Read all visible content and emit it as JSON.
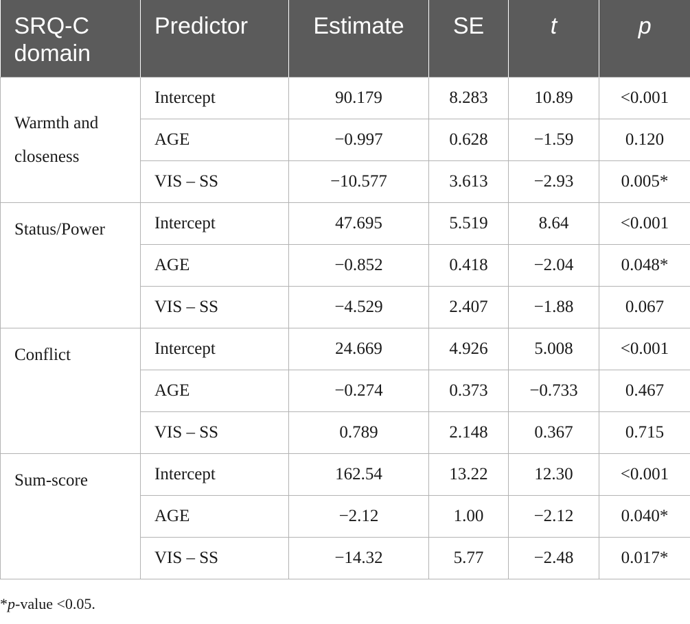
{
  "table": {
    "headers": {
      "domain": "SRQ-C domain",
      "predictor": "Predictor",
      "estimate": "Estimate",
      "se": "SE",
      "t": "t",
      "p": "p"
    },
    "groups": [
      {
        "domain": "Warmth and closeness",
        "rows": [
          {
            "predictor": "Intercept",
            "estimate": "90.179",
            "se": "8.283",
            "t": "10.89",
            "p": "<0.001"
          },
          {
            "predictor": "AGE",
            "estimate": "−0.997",
            "se": "0.628",
            "t": "−1.59",
            "p": "0.120"
          },
          {
            "predictor": "VIS – SS",
            "estimate": "−10.577",
            "se": "3.613",
            "t": "−2.93",
            "p": "0.005*"
          }
        ]
      },
      {
        "domain": "Status/Power",
        "rows": [
          {
            "predictor": "Intercept",
            "estimate": "47.695",
            "se": "5.519",
            "t": "8.64",
            "p": "<0.001"
          },
          {
            "predictor": "AGE",
            "estimate": "−0.852",
            "se": "0.418",
            "t": "−2.04",
            "p": "0.048*"
          },
          {
            "predictor": "VIS – SS",
            "estimate": "−4.529",
            "se": "2.407",
            "t": "−1.88",
            "p": "0.067"
          }
        ]
      },
      {
        "domain": "Conflict",
        "rows": [
          {
            "predictor": "Intercept",
            "estimate": "24.669",
            "se": "4.926",
            "t": "5.008",
            "p": "<0.001"
          },
          {
            "predictor": "AGE",
            "estimate": "−0.274",
            "se": "0.373",
            "t": "−0.733",
            "p": "0.467"
          },
          {
            "predictor": "VIS – SS",
            "estimate": "0.789",
            "se": "2.148",
            "t": "0.367",
            "p": "0.715"
          }
        ]
      },
      {
        "domain": "Sum-score",
        "rows": [
          {
            "predictor": "Intercept",
            "estimate": "162.54",
            "se": "13.22",
            "t": "12.30",
            "p": "<0.001"
          },
          {
            "predictor": "AGE",
            "estimate": "−2.12",
            "se": "1.00",
            "t": "−2.12",
            "p": "0.040*"
          },
          {
            "predictor": "VIS – SS",
            "estimate": "−14.32",
            "se": "5.77",
            "t": "−2.48",
            "p": "0.017*"
          }
        ]
      }
    ]
  },
  "footnote": {
    "star": "*",
    "p_label": "p",
    "text": "-value <0.05."
  },
  "colors": {
    "header_bg": "#5b5b5b",
    "header_text": "#ffffff",
    "grid": "#b3b3b3"
  }
}
